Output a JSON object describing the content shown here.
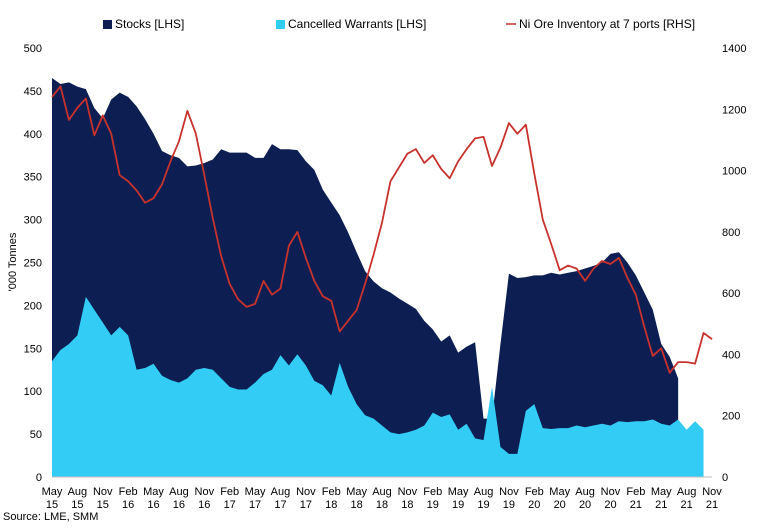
{
  "chart_data": {
    "type": "area",
    "ylabel": "'000 Tonnes",
    "ylim": [
      0,
      500
    ],
    "y2lim": [
      0,
      1400
    ],
    "y_ticks": [
      "0",
      "50",
      "100",
      "150",
      "200",
      "250",
      "300",
      "350",
      "400",
      "450",
      "500"
    ],
    "y2_ticks": [
      "0",
      "200",
      "400",
      "600",
      "800",
      "1000",
      "1200",
      "1400"
    ],
    "x_tick_labels": [
      [
        "May",
        "15"
      ],
      [
        "Aug",
        "15"
      ],
      [
        "Nov",
        "15"
      ],
      [
        "Feb",
        "16"
      ],
      [
        "May",
        "16"
      ],
      [
        "Aug",
        "16"
      ],
      [
        "Nov",
        "16"
      ],
      [
        "Feb",
        "17"
      ],
      [
        "May",
        "17"
      ],
      [
        "Aug",
        "17"
      ],
      [
        "Nov",
        "17"
      ],
      [
        "Feb",
        "18"
      ],
      [
        "May",
        "18"
      ],
      [
        "Aug",
        "18"
      ],
      [
        "Nov",
        "18"
      ],
      [
        "Feb",
        "19"
      ],
      [
        "May",
        "19"
      ],
      [
        "Aug",
        "19"
      ],
      [
        "Nov",
        "19"
      ],
      [
        "Feb",
        "20"
      ],
      [
        "May",
        "20"
      ],
      [
        "Aug",
        "20"
      ],
      [
        "Nov",
        "20"
      ],
      [
        "Feb",
        "21"
      ],
      [
        "May",
        "21"
      ],
      [
        "Aug",
        "21"
      ],
      [
        "Nov",
        "21"
      ]
    ],
    "series": [
      {
        "name": "Stocks [LHS]",
        "axis": "left",
        "kind": "area",
        "color": "#0d1f52",
        "values": [
          [
            0,
            465
          ],
          [
            1,
            458
          ],
          [
            2,
            460
          ],
          [
            3,
            455
          ],
          [
            4,
            452
          ],
          [
            5,
            430
          ],
          [
            6,
            418
          ],
          [
            7,
            440
          ],
          [
            8,
            448
          ],
          [
            9,
            443
          ],
          [
            10,
            432
          ],
          [
            11,
            417
          ],
          [
            12,
            400
          ],
          [
            13,
            380
          ],
          [
            14,
            375
          ],
          [
            15,
            372
          ],
          [
            16,
            362
          ],
          [
            17,
            363
          ],
          [
            18,
            366
          ],
          [
            19,
            370
          ],
          [
            20,
            382
          ],
          [
            21,
            378
          ],
          [
            22,
            378
          ],
          [
            23,
            378
          ],
          [
            24,
            372
          ],
          [
            25,
            372
          ],
          [
            26,
            388
          ],
          [
            27,
            382
          ],
          [
            28,
            382
          ],
          [
            29,
            381
          ],
          [
            30,
            368
          ],
          [
            31,
            358
          ],
          [
            32,
            335
          ],
          [
            33,
            320
          ],
          [
            34,
            305
          ],
          [
            35,
            285
          ],
          [
            36,
            262
          ],
          [
            37,
            240
          ],
          [
            38,
            228
          ],
          [
            39,
            220
          ],
          [
            40,
            215
          ],
          [
            41,
            208
          ],
          [
            42,
            202
          ],
          [
            43,
            196
          ],
          [
            44,
            182
          ],
          [
            45,
            172
          ],
          [
            46,
            158
          ],
          [
            47,
            165
          ],
          [
            48,
            145
          ],
          [
            49,
            152
          ],
          [
            50,
            157
          ],
          [
            51,
            68
          ],
          [
            52,
            68
          ],
          [
            53,
            155
          ],
          [
            54,
            237
          ],
          [
            55,
            232
          ],
          [
            56,
            233
          ],
          [
            57,
            235
          ],
          [
            58,
            235
          ],
          [
            59,
            238
          ],
          [
            60,
            236
          ],
          [
            61,
            238
          ],
          [
            62,
            240
          ],
          [
            63,
            243
          ],
          [
            64,
            246
          ],
          [
            65,
            250
          ],
          [
            66,
            260
          ],
          [
            67,
            262
          ],
          [
            68,
            250
          ],
          [
            69,
            235
          ],
          [
            70,
            215
          ],
          [
            71,
            195
          ],
          [
            72,
            155
          ],
          [
            73,
            140
          ],
          [
            74,
            115
          ]
        ]
      },
      {
        "name": "Cancelled Warrants [LHS]",
        "axis": "left",
        "kind": "area",
        "color": "#33ccf5",
        "values": [
          [
            0,
            135
          ],
          [
            1,
            148
          ],
          [
            2,
            155
          ],
          [
            3,
            165
          ],
          [
            4,
            210
          ],
          [
            5,
            195
          ],
          [
            6,
            180
          ],
          [
            7,
            165
          ],
          [
            8,
            175
          ],
          [
            9,
            165
          ],
          [
            10,
            125
          ],
          [
            11,
            127
          ],
          [
            12,
            132
          ],
          [
            13,
            118
          ],
          [
            14,
            113
          ],
          [
            15,
            110
          ],
          [
            16,
            115
          ],
          [
            17,
            125
          ],
          [
            18,
            127
          ],
          [
            19,
            125
          ],
          [
            20,
            115
          ],
          [
            21,
            105
          ],
          [
            22,
            102
          ],
          [
            23,
            102
          ],
          [
            24,
            110
          ],
          [
            25,
            120
          ],
          [
            26,
            125
          ],
          [
            27,
            142
          ],
          [
            28,
            130
          ],
          [
            29,
            143
          ],
          [
            30,
            130
          ],
          [
            31,
            112
          ],
          [
            32,
            107
          ],
          [
            33,
            95
          ],
          [
            34,
            133
          ],
          [
            35,
            105
          ],
          [
            36,
            85
          ],
          [
            37,
            72
          ],
          [
            38,
            68
          ],
          [
            39,
            60
          ],
          [
            40,
            52
          ],
          [
            41,
            50
          ],
          [
            42,
            52
          ],
          [
            43,
            55
          ],
          [
            44,
            60
          ],
          [
            45,
            75
          ],
          [
            46,
            70
          ],
          [
            47,
            73
          ],
          [
            48,
            55
          ],
          [
            49,
            62
          ],
          [
            50,
            45
          ],
          [
            51,
            43
          ],
          [
            52,
            105
          ],
          [
            53,
            35
          ],
          [
            54,
            27
          ],
          [
            55,
            27
          ],
          [
            56,
            77
          ],
          [
            57,
            85
          ],
          [
            58,
            57
          ],
          [
            59,
            56
          ],
          [
            60,
            57
          ],
          [
            61,
            57
          ],
          [
            62,
            60
          ],
          [
            63,
            58
          ],
          [
            64,
            60
          ],
          [
            65,
            62
          ],
          [
            66,
            60
          ],
          [
            67,
            65
          ],
          [
            68,
            64
          ],
          [
            69,
            65
          ],
          [
            70,
            65
          ],
          [
            71,
            67
          ],
          [
            72,
            62
          ],
          [
            73,
            60
          ],
          [
            74,
            67
          ],
          [
            75,
            55
          ],
          [
            76,
            65
          ],
          [
            77,
            55
          ]
        ]
      },
      {
        "name": "Ni Ore Inventory at 7 ports [RHS]",
        "axis": "right",
        "kind": "line",
        "color": "#c8322d",
        "values": [
          [
            0,
            1240
          ],
          [
            1,
            1275
          ],
          [
            2,
            1165
          ],
          [
            3,
            1205
          ],
          [
            4,
            1235
          ],
          [
            5,
            1115
          ],
          [
            6,
            1180
          ],
          [
            7,
            1120
          ],
          [
            8,
            985
          ],
          [
            9,
            965
          ],
          [
            10,
            935
          ],
          [
            11,
            895
          ],
          [
            12,
            910
          ],
          [
            13,
            955
          ],
          [
            14,
            1030
          ],
          [
            15,
            1095
          ],
          [
            16,
            1195
          ],
          [
            17,
            1120
          ],
          [
            18,
            985
          ],
          [
            19,
            845
          ],
          [
            20,
            720
          ],
          [
            21,
            630
          ],
          [
            22,
            580
          ],
          [
            23,
            555
          ],
          [
            24,
            565
          ],
          [
            25,
            640
          ],
          [
            26,
            595
          ],
          [
            27,
            615
          ],
          [
            28,
            755
          ],
          [
            29,
            800
          ],
          [
            30,
            715
          ],
          [
            31,
            640
          ],
          [
            32,
            590
          ],
          [
            33,
            575
          ],
          [
            34,
            475
          ],
          [
            35,
            510
          ],
          [
            36,
            545
          ],
          [
            37,
            630
          ],
          [
            38,
            725
          ],
          [
            39,
            830
          ],
          [
            40,
            965
          ],
          [
            41,
            1010
          ],
          [
            42,
            1055
          ],
          [
            43,
            1070
          ],
          [
            44,
            1025
          ],
          [
            45,
            1050
          ],
          [
            46,
            1005
          ],
          [
            47,
            975
          ],
          [
            48,
            1030
          ],
          [
            49,
            1070
          ],
          [
            50,
            1105
          ],
          [
            51,
            1110
          ],
          [
            52,
            1015
          ],
          [
            53,
            1075
          ],
          [
            54,
            1155
          ],
          [
            55,
            1120
          ],
          [
            56,
            1150
          ],
          [
            57,
            990
          ],
          [
            58,
            840
          ],
          [
            59,
            760
          ],
          [
            60,
            675
          ],
          [
            61,
            690
          ],
          [
            62,
            680
          ],
          [
            63,
            640
          ],
          [
            64,
            680
          ],
          [
            65,
            705
          ],
          [
            66,
            695
          ],
          [
            67,
            715
          ],
          [
            68,
            650
          ],
          [
            69,
            595
          ],
          [
            70,
            490
          ],
          [
            71,
            395
          ],
          [
            72,
            420
          ],
          [
            73,
            340
          ],
          [
            74,
            375
          ],
          [
            75,
            375
          ],
          [
            76,
            370
          ],
          [
            77,
            470
          ],
          [
            78,
            450
          ]
        ]
      }
    ],
    "legend_position": "top",
    "grid": false
  },
  "source": "Source: LME, SMM"
}
